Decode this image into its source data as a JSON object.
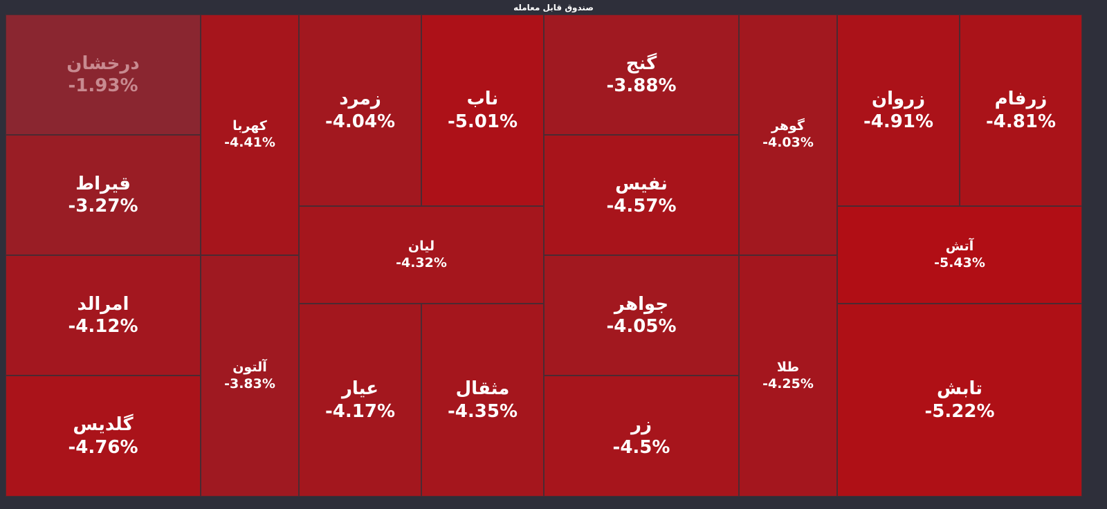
{
  "title": "صندوق قابل معامله",
  "chart_data": {
    "type": "treemap",
    "title": "صندوق قابل معامله",
    "items": [
      {
        "name": "درخشان",
        "label": "-1.93%",
        "change": -1.93
      },
      {
        "name": "قیراط",
        "label": "-3.27%",
        "change": -3.27
      },
      {
        "name": "امرالد",
        "label": "-4.12%",
        "change": -4.12
      },
      {
        "name": "گلدیس",
        "label": "-4.76%",
        "change": -4.76
      },
      {
        "name": "کهربا",
        "label": "-4.41%",
        "change": -4.41
      },
      {
        "name": "آلتون",
        "label": "-3.83%",
        "change": -3.83
      },
      {
        "name": "زمرد",
        "label": "-4.04%",
        "change": -4.04
      },
      {
        "name": "ناب",
        "label": "-5.01%",
        "change": -5.01
      },
      {
        "name": "لیان",
        "label": "-4.32%",
        "change": -4.32
      },
      {
        "name": "عیار",
        "label": "-4.17%",
        "change": -4.17
      },
      {
        "name": "مثقال",
        "label": "-4.35%",
        "change": -4.35
      },
      {
        "name": "گنج",
        "label": "-3.88%",
        "change": -3.88
      },
      {
        "name": "نفیس",
        "label": "-4.57%",
        "change": -4.57
      },
      {
        "name": "جواهر",
        "label": "-4.05%",
        "change": -4.05
      },
      {
        "name": "زر",
        "label": "-4.5%",
        "change": -4.5
      },
      {
        "name": "گوهر",
        "label": "-4.03%",
        "change": -4.03
      },
      {
        "name": "طلا",
        "label": "-4.25%",
        "change": -4.25
      },
      {
        "name": "زروان",
        "label": "-4.91%",
        "change": -4.91
      },
      {
        "name": "زرفام",
        "label": "-4.81%",
        "change": -4.81
      },
      {
        "name": "آتش",
        "label": "-5.43%",
        "change": -5.43
      },
      {
        "name": "تابش",
        "label": "-5.22%",
        "change": -5.22
      }
    ]
  }
}
